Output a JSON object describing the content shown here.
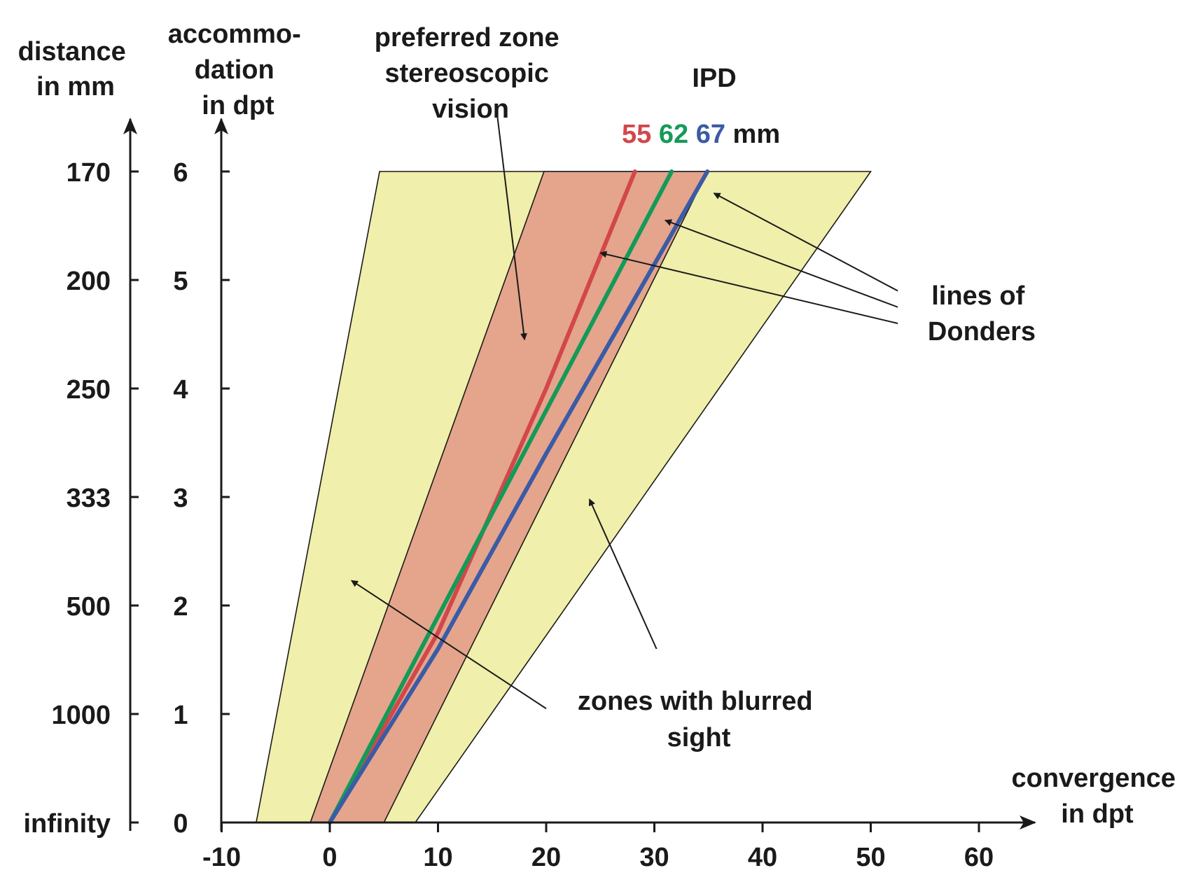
{
  "chart_data": {
    "type": "area",
    "x_axis": {
      "label_lines": [
        "convergence",
        "in dpt"
      ],
      "range": [
        -10,
        60
      ],
      "ticks": [
        -10,
        0,
        10,
        20,
        30,
        40,
        50,
        60
      ]
    },
    "y_axis": {
      "label_lines": [
        "accommo-",
        "dation",
        "in dpt"
      ],
      "range": [
        0,
        6
      ],
      "ticks": [
        0,
        1,
        2,
        3,
        4,
        5,
        6
      ]
    },
    "distance_axis": {
      "label_lines": [
        "distance",
        "in mm"
      ],
      "ticks": [
        {
          "accommodation": 6,
          "label": "170"
        },
        {
          "accommodation": 5,
          "label": "200"
        },
        {
          "accommodation": 4,
          "label": "250"
        },
        {
          "accommodation": 3,
          "label": "333"
        },
        {
          "accommodation": 2,
          "label": "500"
        },
        {
          "accommodation": 1,
          "label": "1000"
        },
        {
          "accommodation": 0,
          "label": "infinity"
        }
      ]
    },
    "zones": [
      {
        "kind": "blurred",
        "color": "#f0efab",
        "polygon": [
          [
            -6.8,
            0
          ],
          [
            4.6,
            6
          ],
          [
            50.0,
            6
          ],
          [
            7.9,
            0
          ]
        ]
      },
      {
        "kind": "preferred",
        "color": "#e4a58c",
        "polygon": [
          [
            -1.8,
            0
          ],
          [
            19.8,
            6
          ],
          [
            34.9,
            6
          ],
          [
            5.0,
            0
          ]
        ]
      }
    ],
    "donders_lines": {
      "title": "IPD",
      "unit": "mm",
      "series": [
        {
          "ipd": "55",
          "color": "#d2474a",
          "points": [
            [
              0,
              0
            ],
            [
              10,
              1.75
            ],
            [
              20,
              4.0
            ],
            [
              28.2,
              6
            ]
          ]
        },
        {
          "ipd": "62",
          "color": "#149a58",
          "points": [
            [
              0,
              0
            ],
            [
              31.6,
              6
            ]
          ]
        },
        {
          "ipd": "67",
          "color": "#3b5ba6",
          "points": [
            [
              0,
              0
            ],
            [
              10,
              1.6
            ],
            [
              20,
              3.4
            ],
            [
              34.9,
              6
            ]
          ]
        }
      ]
    },
    "annotations": [
      {
        "text_lines": [
          "preferred zone",
          "stereoscopic",
          "vision"
        ],
        "arrows": [
          {
            "from": [
              15.5,
              6.5
            ],
            "to": [
              18,
              4.45
            ]
          }
        ]
      },
      {
        "text_lines": [
          "lines of",
          "Donders"
        ],
        "arrows": [
          {
            "from": [
              52.5,
              4.9
            ],
            "to": [
              35.5,
              5.8
            ]
          },
          {
            "from": [
              52.5,
              4.75
            ],
            "to": [
              31.0,
              5.55
            ]
          },
          {
            "from": [
              52.5,
              4.6
            ],
            "to": [
              25.0,
              5.25
            ]
          }
        ]
      },
      {
        "text_lines": [
          "zones with blurred",
          "sight"
        ],
        "arrows": [
          {
            "from": [
              20.0,
              1.05
            ],
            "to": [
              2.0,
              2.23
            ]
          },
          {
            "from": [
              30.2,
              1.6
            ],
            "to": [
              24.0,
              2.98
            ]
          }
        ]
      }
    ]
  }
}
